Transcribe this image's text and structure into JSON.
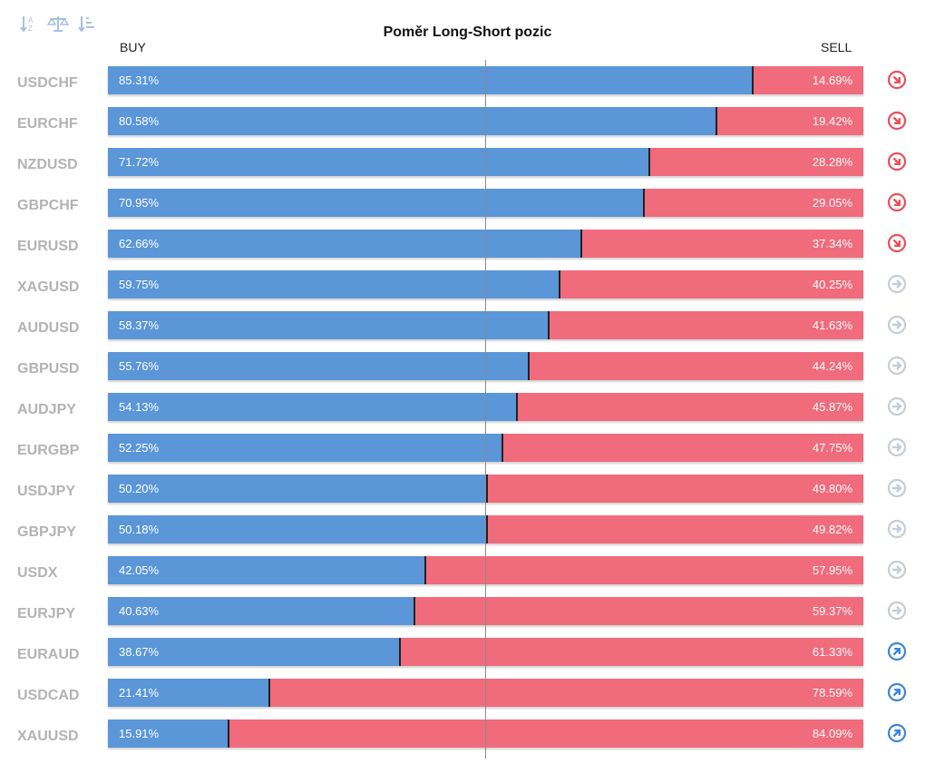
{
  "title": "Poměr Long-Short pozic",
  "labels": {
    "buy": "BUY",
    "sell": "SELL"
  },
  "toolbar": [
    {
      "name": "sort-az-icon"
    },
    {
      "name": "balance-scale-icon"
    },
    {
      "name": "sort-list-icon"
    }
  ],
  "colors": {
    "buy": "#5a96d8",
    "sell": "#f06b7c",
    "pair_text": "#b3b3b3",
    "trend_down": "#e8505b",
    "trend_neutral": "#c6ccd6",
    "trend_up": "#3d86d6"
  },
  "chart_data": {
    "type": "bar",
    "stacked": true,
    "orientation": "horizontal",
    "title": "Poměr Long-Short pozic",
    "categories": [
      "USDCHF",
      "EURCHF",
      "NZDUSD",
      "GBPCHF",
      "EURUSD",
      "XAGUSD",
      "AUDUSD",
      "GBPUSD",
      "AUDJPY",
      "EURGBP",
      "USDJPY",
      "GBPJPY",
      "USDX",
      "EURJPY",
      "EURAUD",
      "USDCAD",
      "XAUUSD"
    ],
    "series": [
      {
        "name": "BUY",
        "values": [
          85.31,
          80.58,
          71.72,
          70.95,
          62.66,
          59.75,
          58.37,
          55.76,
          54.13,
          52.25,
          50.2,
          50.18,
          42.05,
          40.63,
          38.67,
          21.41,
          15.91
        ]
      },
      {
        "name": "SELL",
        "values": [
          14.69,
          19.42,
          28.28,
          29.05,
          37.34,
          40.25,
          41.63,
          44.24,
          45.87,
          47.75,
          49.8,
          49.82,
          57.95,
          59.37,
          61.33,
          78.59,
          84.09
        ]
      }
    ],
    "rows": [
      {
        "pair": "USDCHF",
        "buy": "85.31%",
        "sell": "14.69%",
        "buy_value": 85.31,
        "trend": "down"
      },
      {
        "pair": "EURCHF",
        "buy": "80.58%",
        "sell": "19.42%",
        "buy_value": 80.58,
        "trend": "down"
      },
      {
        "pair": "NZDUSD",
        "buy": "71.72%",
        "sell": "28.28%",
        "buy_value": 71.72,
        "trend": "down"
      },
      {
        "pair": "GBPCHF",
        "buy": "70.95%",
        "sell": "29.05%",
        "buy_value": 70.95,
        "trend": "down"
      },
      {
        "pair": "EURUSD",
        "buy": "62.66%",
        "sell": "37.34%",
        "buy_value": 62.66,
        "trend": "down"
      },
      {
        "pair": "XAGUSD",
        "buy": "59.75%",
        "sell": "40.25%",
        "buy_value": 59.75,
        "trend": "neutral"
      },
      {
        "pair": "AUDUSD",
        "buy": "58.37%",
        "sell": "41.63%",
        "buy_value": 58.37,
        "trend": "neutral"
      },
      {
        "pair": "GBPUSD",
        "buy": "55.76%",
        "sell": "44.24%",
        "buy_value": 55.76,
        "trend": "neutral"
      },
      {
        "pair": "AUDJPY",
        "buy": "54.13%",
        "sell": "45.87%",
        "buy_value": 54.13,
        "trend": "neutral"
      },
      {
        "pair": "EURGBP",
        "buy": "52.25%",
        "sell": "47.75%",
        "buy_value": 52.25,
        "trend": "neutral"
      },
      {
        "pair": "USDJPY",
        "buy": "50.20%",
        "sell": "49.80%",
        "buy_value": 50.2,
        "trend": "neutral"
      },
      {
        "pair": "GBPJPY",
        "buy": "50.18%",
        "sell": "49.82%",
        "buy_value": 50.18,
        "trend": "neutral"
      },
      {
        "pair": "USDX",
        "buy": "42.05%",
        "sell": "57.95%",
        "buy_value": 42.05,
        "trend": "neutral"
      },
      {
        "pair": "EURJPY",
        "buy": "40.63%",
        "sell": "59.37%",
        "buy_value": 40.63,
        "trend": "neutral"
      },
      {
        "pair": "EURAUD",
        "buy": "38.67%",
        "sell": "61.33%",
        "buy_value": 38.67,
        "trend": "up"
      },
      {
        "pair": "USDCAD",
        "buy": "21.41%",
        "sell": "78.59%",
        "buy_value": 21.41,
        "trend": "up"
      },
      {
        "pair": "XAUUSD",
        "buy": "15.91%",
        "sell": "84.09%",
        "buy_value": 15.91,
        "trend": "up"
      }
    ],
    "xlim": [
      0,
      100
    ],
    "grid": false,
    "legend": "top"
  }
}
